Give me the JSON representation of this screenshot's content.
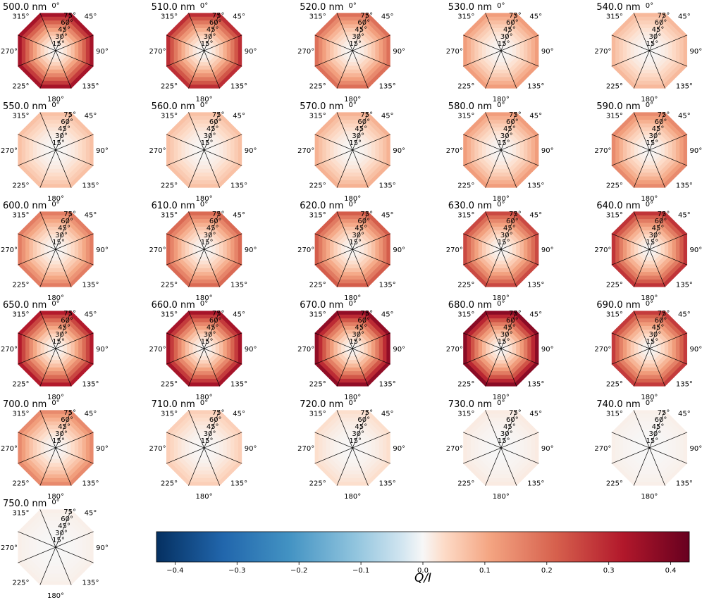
{
  "chart_data": {
    "type": "heatmap",
    "description_kind": "polar octagon maps of Q/I per wavelength",
    "wavelength_unit": "nm",
    "panels": [
      {
        "label": "500.0 nm",
        "max_q": 0.34
      },
      {
        "label": "510.0 nm",
        "max_q": 0.29
      },
      {
        "label": "520.0 nm",
        "max_q": 0.19
      },
      {
        "label": "530.0 nm",
        "max_q": 0.12
      },
      {
        "label": "540.0 nm",
        "max_q": 0.08
      },
      {
        "label": "550.0 nm",
        "max_q": 0.07
      },
      {
        "label": "560.0 nm",
        "max_q": 0.07
      },
      {
        "label": "570.0 nm",
        "max_q": 0.09
      },
      {
        "label": "580.0 nm",
        "max_q": 0.12
      },
      {
        "label": "590.0 nm",
        "max_q": 0.15
      },
      {
        "label": "600.0 nm",
        "max_q": 0.17
      },
      {
        "label": "610.0 nm",
        "max_q": 0.2
      },
      {
        "label": "620.0 nm",
        "max_q": 0.22
      },
      {
        "label": "630.0 nm",
        "max_q": 0.25
      },
      {
        "label": "640.0 nm",
        "max_q": 0.28
      },
      {
        "label": "650.0 nm",
        "max_q": 0.32
      },
      {
        "label": "660.0 nm",
        "max_q": 0.34
      },
      {
        "label": "670.0 nm",
        "max_q": 0.37
      },
      {
        "label": "680.0 nm",
        "max_q": 0.38
      },
      {
        "label": "690.0 nm",
        "max_q": 0.27
      },
      {
        "label": "700.0 nm",
        "max_q": 0.15
      },
      {
        "label": "710.0 nm",
        "max_q": 0.05
      },
      {
        "label": "720.0 nm",
        "max_q": 0.03
      },
      {
        "label": "730.0 nm",
        "max_q": 0.015
      },
      {
        "label": "740.0 nm",
        "max_q": 0.01
      },
      {
        "label": "750.0 nm",
        "max_q": 0.01
      }
    ],
    "azimuth_labels": [
      "0°",
      "45°",
      "90°",
      "135°",
      "180°",
      "225°",
      "270°",
      "315°"
    ],
    "radial_labels": [
      "15°",
      "30°",
      "45°",
      "60°",
      "75°"
    ],
    "colorbar": {
      "label": "Q/I",
      "range": [
        -0.43,
        0.43
      ],
      "ticks": [
        -0.4,
        -0.3,
        -0.2,
        -0.1,
        0.0,
        0.1,
        0.2,
        0.3,
        0.4
      ],
      "tick_labels": [
        "−0.4",
        "−0.3",
        "−0.2",
        "−0.1",
        "0.0",
        "0.1",
        "0.2",
        "0.3",
        "0.4"
      ],
      "colormap": "RdBu_r"
    }
  }
}
